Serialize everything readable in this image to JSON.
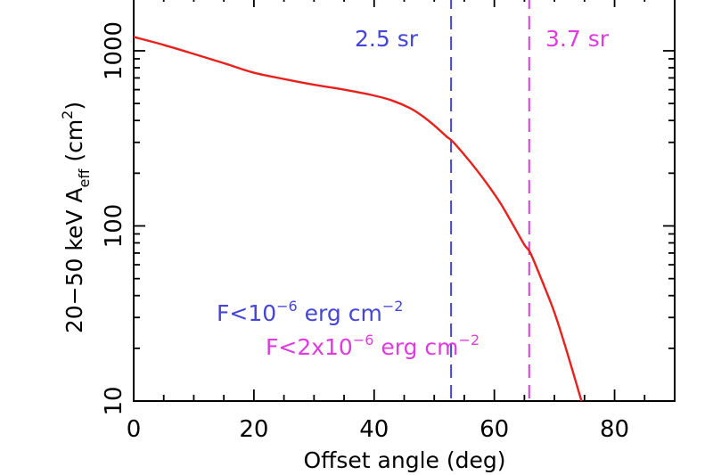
{
  "chart_data": {
    "type": "line",
    "xlabel": "Offset angle (deg)",
    "ylabel_main": "20−50 keV A",
    "ylabel_sub": "eff",
    "ylabel_unit_open": " (cm",
    "ylabel_unit_exp": "2",
    "ylabel_unit_close": ")",
    "xlim": [
      0,
      90
    ],
    "ylim": [
      10,
      2000
    ],
    "yscale": "log",
    "x_ticks": [
      0,
      20,
      40,
      60,
      80
    ],
    "x_tick_labels": [
      "0",
      "20",
      "40",
      "60",
      "80"
    ],
    "y_ticks": [
      10,
      100,
      1000
    ],
    "y_tick_labels": [
      "10",
      "100",
      "1000"
    ],
    "grid": false,
    "colors": {
      "curve": "#e8201c",
      "blue": "#4545d8",
      "magenta": "#e03be0",
      "axis": "#000000"
    },
    "series": [
      {
        "color": "#e8201c",
        "x": [
          0,
          5,
          10,
          15,
          20,
          25,
          30,
          35,
          40,
          43,
          46,
          48,
          50,
          52,
          53,
          55,
          57,
          59,
          61,
          63,
          65,
          66,
          68,
          70,
          72,
          74.5
        ],
        "y": [
          1200,
          1080,
          960,
          850,
          750,
          690,
          640,
          600,
          555,
          520,
          470,
          425,
          375,
          325,
          305,
          255,
          210,
          170,
          135,
          103,
          78,
          70,
          48,
          32,
          19.5,
          10
        ]
      }
    ],
    "vlines": [
      {
        "x": 52.8,
        "color": "#4545d8",
        "style": "dashed"
      },
      {
        "x": 65.8,
        "color": "#e03be0",
        "style": "dashed"
      }
    ],
    "annotations": {
      "label_25": "2.5 sr",
      "label_37": "3.7 sr",
      "flux1_base": "F<10",
      "flux1_exp": "−6",
      "flux1_unit": " erg cm",
      "flux1_unit_exp": "−2",
      "flux2_base": "F<2x10",
      "flux2_exp": "−6",
      "flux2_unit": " erg cm",
      "flux2_unit_exp": "−2"
    }
  }
}
